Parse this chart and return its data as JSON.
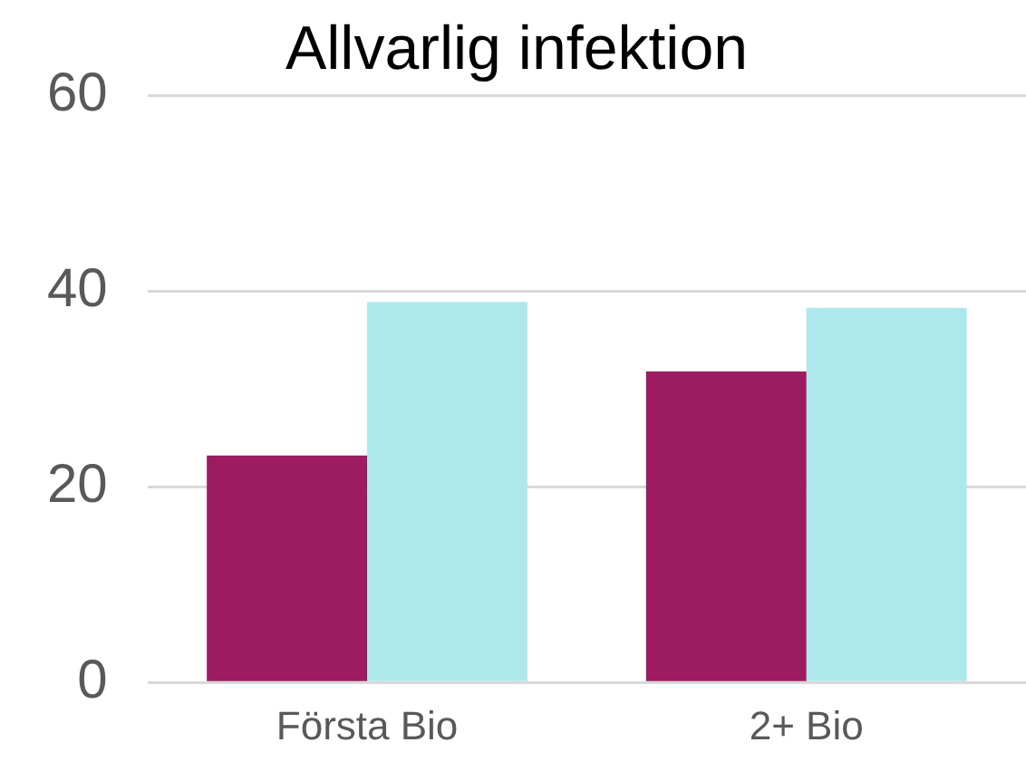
{
  "chart_data": {
    "type": "bar",
    "title": "Allvarlig infektion",
    "categories": [
      "Första Bio",
      "2+ Bio"
    ],
    "series": [
      {
        "color": "#9c1b62",
        "values": [
          23.2,
          31.8
        ]
      },
      {
        "color": "#ade8ec",
        "values": [
          38.9,
          38.3
        ]
      }
    ],
    "ylim": [
      0,
      60
    ],
    "yticks": [
      0,
      20,
      40,
      60
    ],
    "grid": "y",
    "legend": false
  }
}
